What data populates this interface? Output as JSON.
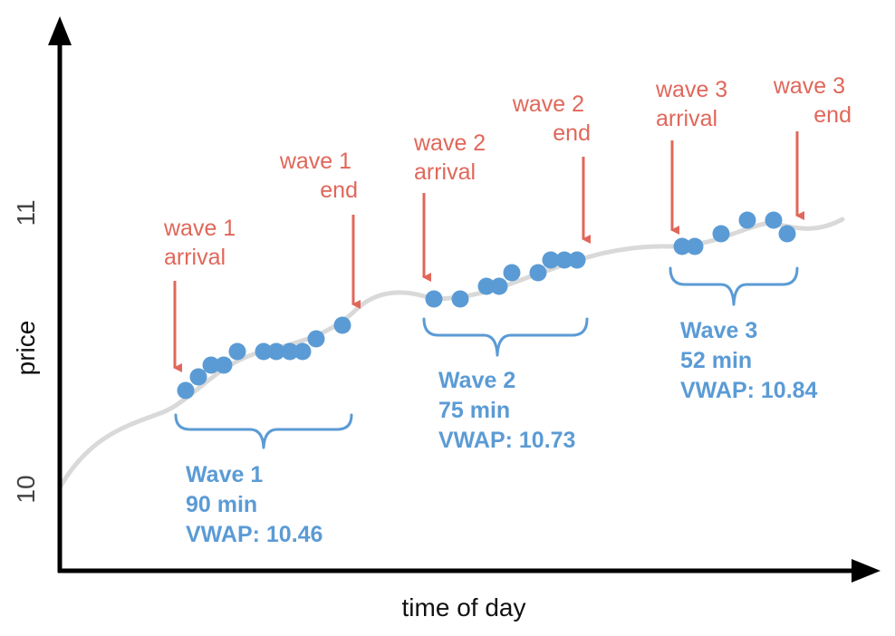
{
  "axes": {
    "x_label": "time of day",
    "y_label": "price",
    "y_ticks": [
      "10",
      "11"
    ]
  },
  "colors": {
    "price_line": "#d9d9d9",
    "trade": "#5b9bd5",
    "annotation": "#e0675a",
    "axis": "#000000"
  },
  "waves": [
    {
      "name": "Wave 1",
      "duration": "90 min",
      "vwap": "VWAP: 10.46",
      "arrival_label": [
        "wave 1",
        "arrival"
      ],
      "end_label": [
        "wave 1",
        "end"
      ]
    },
    {
      "name": "Wave 2",
      "duration": "75 min",
      "vwap": "VWAP: 10.73",
      "arrival_label": [
        "wave 2",
        "arrival"
      ],
      "end_label": [
        "wave 2",
        "end"
      ]
    },
    {
      "name": "Wave 3",
      "duration": "52 min",
      "vwap": "VWAP: 10.84",
      "arrival_label": [
        "wave 3",
        "arrival"
      ],
      "end_label": [
        "wave 3",
        "end"
      ]
    }
  ]
}
